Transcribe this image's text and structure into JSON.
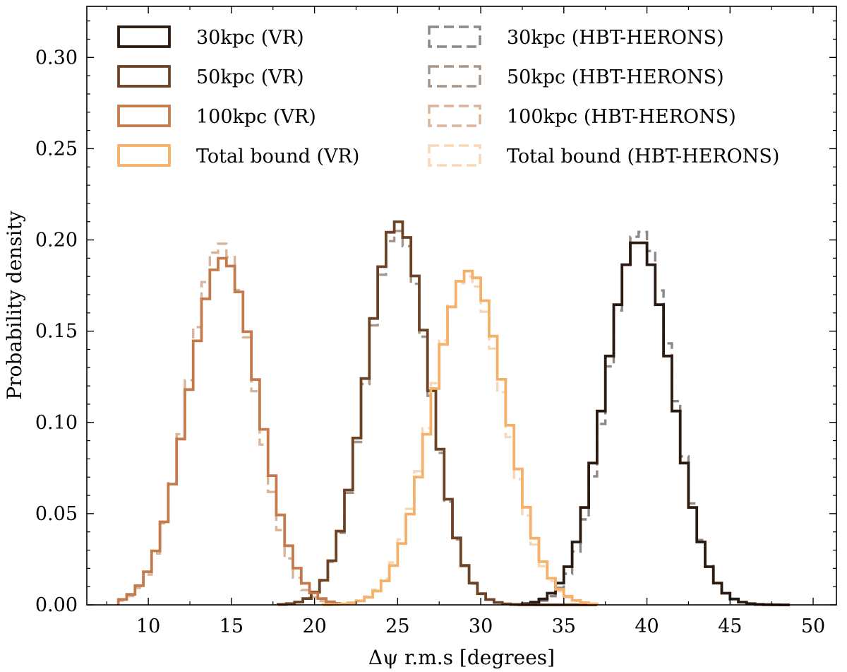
{
  "chart_data": {
    "type": "histogram",
    "title": "",
    "xlabel": "Δψ r.m.s [degrees]",
    "ylabel": "Probability density",
    "xlim": [
      6.3,
      51.4
    ],
    "ylim": [
      0,
      0.328
    ],
    "xticks": [
      10,
      15,
      20,
      25,
      30,
      35,
      40,
      45,
      50
    ],
    "yticks": [
      0.0,
      0.05,
      0.1,
      0.15,
      0.2,
      0.25,
      0.3
    ],
    "xtick_labels": [
      "10",
      "15",
      "20",
      "25",
      "30",
      "35",
      "40",
      "45",
      "50"
    ],
    "ytick_labels": [
      "0.00",
      "0.05",
      "0.10",
      "0.15",
      "0.20",
      "0.25",
      "0.30"
    ],
    "grid": false,
    "legend": {
      "placement": "top",
      "columns": 2
    },
    "series": [
      {
        "name": "30kpc (VR)",
        "color": "#2b1a10",
        "style": "solid",
        "mean": 39.5,
        "sigma": 2.0,
        "peak": 0.2,
        "range": [
          32.0,
          48.6
        ]
      },
      {
        "name": "50kpc (VR)",
        "color": "#6b4226",
        "style": "solid",
        "mean": 25.0,
        "sigma": 1.9,
        "peak": 0.21,
        "range": [
          17.8,
          37.0
        ]
      },
      {
        "name": "100kpc (VR)",
        "color": "#c47a4a",
        "style": "solid",
        "mean": 14.5,
        "sigma": 2.1,
        "peak": 0.19,
        "range": [
          8.2,
          21.5
        ]
      },
      {
        "name": "Total bound (VR)",
        "color": "#f5b06a",
        "style": "solid",
        "mean": 29.3,
        "sigma": 2.2,
        "peak": 0.183,
        "range": [
          20.5,
          37.0
        ]
      },
      {
        "name": "30kpc (HBT-HERONS)",
        "color": "#8e8782",
        "style": "dashed",
        "mean": 39.6,
        "sigma": 1.95,
        "peak": 0.205,
        "range": [
          32.0,
          46.5
        ]
      },
      {
        "name": "50kpc (HBT-HERONS)",
        "color": "#a6968a",
        "style": "dashed",
        "mean": 25.0,
        "sigma": 1.9,
        "peak": 0.205,
        "range": [
          17.8,
          37.0
        ]
      },
      {
        "name": "100kpc (HBT-HERONS)",
        "color": "#d8b49a",
        "style": "dashed",
        "mean": 14.4,
        "sigma": 2.0,
        "peak": 0.198,
        "range": [
          8.2,
          21.5
        ]
      },
      {
        "name": "Total bound (HBT-HERONS)",
        "color": "#f8d7b8",
        "style": "dashed",
        "mean": 29.2,
        "sigma": 2.2,
        "peak": 0.18,
        "range": [
          20.5,
          37.0
        ]
      }
    ]
  }
}
